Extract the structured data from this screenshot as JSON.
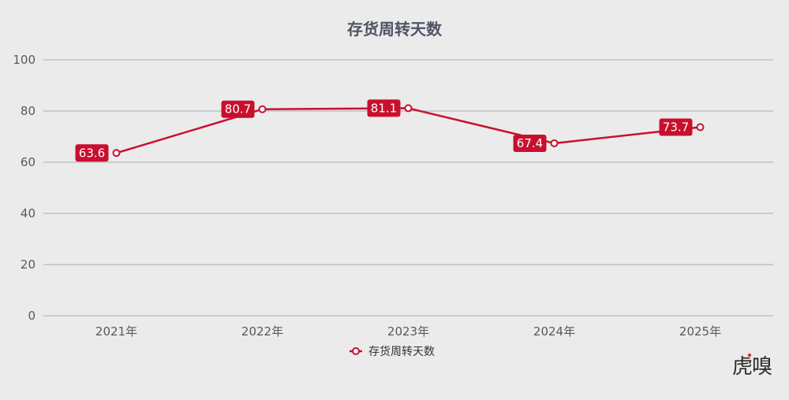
{
  "chart_data": {
    "type": "line",
    "title": "存货周转天数",
    "categories": [
      "2021年",
      "2022年",
      "2023年",
      "2024年",
      "2025年"
    ],
    "series": [
      {
        "name": "存货周转天数",
        "values": [
          63.6,
          80.7,
          81.1,
          67.4,
          73.7
        ],
        "data_labels": [
          "63.6",
          "80.7",
          "81.1",
          "67.4",
          "73.7"
        ],
        "color": "#c8102e"
      }
    ],
    "xlabel": "",
    "ylabel": "",
    "ylim": [
      0,
      100
    ],
    "yticks": [
      "0",
      "20",
      "40",
      "60",
      "80",
      "100"
    ],
    "grid": true,
    "legend_position": "bottom-center"
  },
  "watermark": {
    "text": "虎嗅",
    "accent_color": "#e0202c"
  }
}
